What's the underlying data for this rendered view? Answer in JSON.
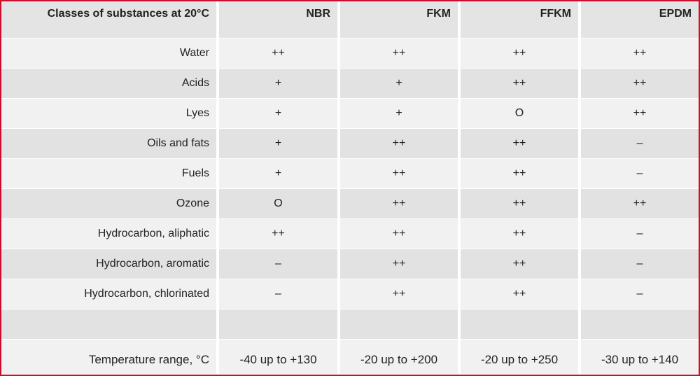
{
  "table": {
    "header": [
      "Classes of substances at 20°C",
      "NBR",
      "FKM",
      "FFKM",
      "EPDM"
    ],
    "rows": [
      [
        "Water",
        "++",
        "++",
        "++",
        "++"
      ],
      [
        "Acids",
        "+",
        "+",
        "++",
        "++"
      ],
      [
        "Lyes",
        "+",
        "+",
        "O",
        "++"
      ],
      [
        "Oils and fats",
        "+",
        "++",
        "++",
        "–"
      ],
      [
        "Fuels",
        "+",
        "++",
        "++",
        "–"
      ],
      [
        "Ozone",
        "O",
        "++",
        "++",
        "++"
      ],
      [
        "Hydrocarbon, aliphatic",
        "++",
        "++",
        "++",
        "–"
      ],
      [
        "Hydrocarbon, aromatic",
        "–",
        "++",
        "++",
        "–"
      ],
      [
        "Hydrocarbon, chlorinated",
        "–",
        "++",
        "++",
        "–"
      ]
    ],
    "footer": [
      "Temperature range, °C",
      "-40 up to +130",
      "-20 up to +200",
      "-20 up to +250",
      "-30 up to +140"
    ]
  }
}
